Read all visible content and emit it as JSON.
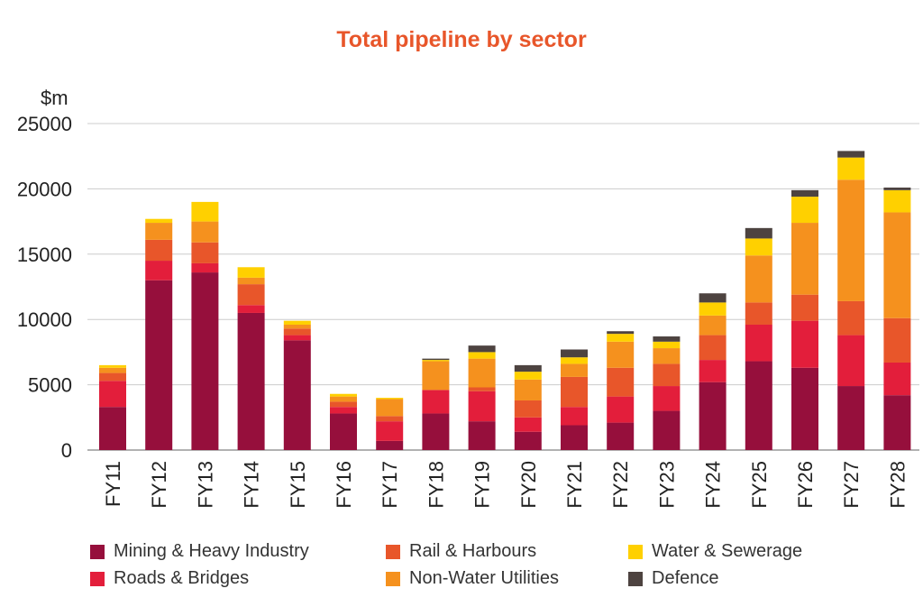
{
  "chart_data": {
    "type": "bar",
    "stacked": true,
    "title": "Total pipeline by sector",
    "ylabel": "$m",
    "xlabel": "",
    "ylim": [
      0,
      25000
    ],
    "yticks": [
      "0",
      "5000",
      "10000",
      "15000",
      "20000",
      "25000"
    ],
    "grid": true,
    "legend_position": "bottom",
    "categories": [
      "FY11",
      "FY12",
      "FY13",
      "FY14",
      "FY15",
      "FY16",
      "FY17",
      "FY18",
      "FY19",
      "FY20",
      "FY21",
      "FY22",
      "FY23",
      "FY24",
      "FY25",
      "FY26",
      "FY27",
      "FY28"
    ],
    "series": [
      {
        "name": "Mining & Heavy Industry",
        "color": "#960f3c",
        "values": [
          3300,
          13000,
          13600,
          10500,
          8400,
          2800,
          700,
          2800,
          2200,
          1400,
          1900,
          2100,
          3000,
          5200,
          6800,
          6300,
          4900,
          4200
        ]
      },
      {
        "name": "Roads & Bridges",
        "color": "#e31e3b",
        "values": [
          2000,
          1500,
          700,
          600,
          400,
          500,
          1500,
          1800,
          2300,
          1100,
          1400,
          2000,
          1900,
          1700,
          2800,
          3600,
          3900,
          2500
        ]
      },
      {
        "name": "Rail & Harbours",
        "color": "#e8562a",
        "values": [
          600,
          1600,
          1600,
          1600,
          500,
          400,
          400,
          0,
          300,
          1300,
          2300,
          2200,
          1700,
          1900,
          1700,
          2000,
          2600,
          3400
        ]
      },
      {
        "name": "Non-Water Utilities",
        "color": "#f5911e",
        "values": [
          400,
          1300,
          1600,
          500,
          300,
          400,
          1300,
          2200,
          2200,
          1600,
          1000,
          2000,
          1200,
          1500,
          3600,
          5500,
          9300,
          8100
        ]
      },
      {
        "name": "Water & Sewerage",
        "color": "#ffd000",
        "values": [
          200,
          300,
          1500,
          800,
          300,
          200,
          100,
          100,
          500,
          600,
          500,
          600,
          500,
          1000,
          1300,
          2000,
          1700,
          1700
        ]
      },
      {
        "name": "Defence",
        "color": "#4d4340",
        "values": [
          0,
          0,
          0,
          0,
          0,
          0,
          0,
          100,
          500,
          500,
          600,
          200,
          400,
          700,
          800,
          500,
          500,
          200
        ]
      }
    ]
  },
  "legend": {
    "items": [
      {
        "label": "Mining & Heavy Industry",
        "color": "#960f3c"
      },
      {
        "label": "Rail & Harbours",
        "color": "#e8562a"
      },
      {
        "label": "Water & Sewerage",
        "color": "#ffd000"
      },
      {
        "label": "Roads & Bridges",
        "color": "#e31e3b"
      },
      {
        "label": "Non-Water Utilities",
        "color": "#f5911e"
      },
      {
        "label": "Defence",
        "color": "#4d4340"
      }
    ]
  }
}
